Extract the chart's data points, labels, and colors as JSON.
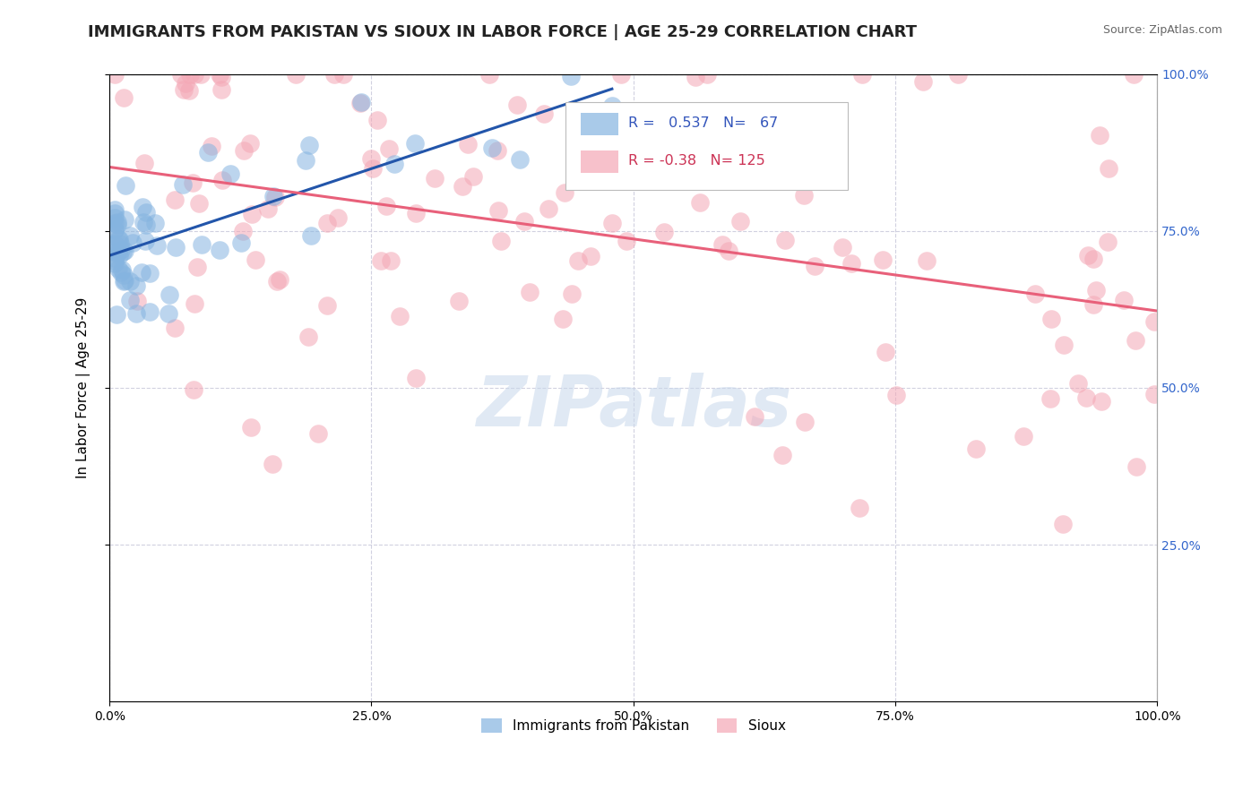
{
  "title": "IMMIGRANTS FROM PAKISTAN VS SIOUX IN LABOR FORCE | AGE 25-29 CORRELATION CHART",
  "source_text": "Source: ZipAtlas.com",
  "ylabel": "In Labor Force | Age 25-29",
  "xlim": [
    0.0,
    1.0
  ],
  "ylim": [
    0.0,
    1.0
  ],
  "xticks": [
    0.0,
    0.25,
    0.5,
    0.75,
    1.0
  ],
  "xticklabels": [
    "0.0%",
    "25.0%",
    "50.0%",
    "75.0%",
    "100.0%"
  ],
  "yticks": [
    0.25,
    0.5,
    0.75,
    1.0
  ],
  "yticklabels": [
    "25.0%",
    "50.0%",
    "75.0%",
    "100.0%"
  ],
  "legend_labels": [
    "Immigrants from Pakistan",
    "Sioux"
  ],
  "blue_R": 0.537,
  "blue_N": 67,
  "pink_R": -0.38,
  "pink_N": 125,
  "blue_color": "#85B4E0",
  "pink_color": "#F4A7B5",
  "blue_line_color": "#2255AA",
  "pink_line_color": "#E8607A",
  "background_color": "#FFFFFF",
  "grid_color": "#CCCCDD",
  "title_fontsize": 13,
  "axis_label_fontsize": 11,
  "tick_fontsize": 10,
  "blue_seed": 77,
  "pink_seed": 88
}
